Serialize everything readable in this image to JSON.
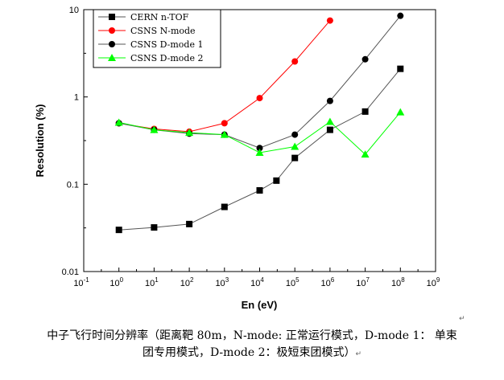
{
  "chart_data": {
    "type": "line",
    "xlabel": "En (eV)",
    "ylabel": "Resolution (%)",
    "x_scale": "log",
    "y_scale": "log",
    "xlim": [
      0.1,
      1000000000
    ],
    "ylim": [
      0.01,
      10
    ],
    "x_ticks": [
      {
        "value": 0.1,
        "base": "10",
        "exp": "-1"
      },
      {
        "value": 1,
        "base": "10",
        "exp": "0"
      },
      {
        "value": 10,
        "base": "10",
        "exp": "1"
      },
      {
        "value": 100,
        "base": "10",
        "exp": "2"
      },
      {
        "value": 1000,
        "base": "10",
        "exp": "3"
      },
      {
        "value": 10000,
        "base": "10",
        "exp": "4"
      },
      {
        "value": 100000,
        "base": "10",
        "exp": "5"
      },
      {
        "value": 1000000,
        "base": "10",
        "exp": "6"
      },
      {
        "value": 10000000,
        "base": "10",
        "exp": "7"
      },
      {
        "value": 100000000,
        "base": "10",
        "exp": "8"
      },
      {
        "value": 1000000000,
        "base": "10",
        "exp": "9"
      }
    ],
    "y_ticks": [
      {
        "value": 0.01,
        "label": "0.01"
      },
      {
        "value": 0.1,
        "label": "0.1"
      },
      {
        "value": 1,
        "label": "1"
      },
      {
        "value": 10,
        "label": "10"
      }
    ],
    "legend_position": "top-left",
    "grid": false,
    "series": [
      {
        "name": "CERN n-TOF",
        "color": "#000000",
        "marker": "square",
        "x": [
          1,
          10,
          100,
          1000,
          10000,
          30000,
          100000,
          1000000,
          10000000,
          100000000
        ],
        "y": [
          0.03,
          0.032,
          0.035,
          0.055,
          0.085,
          0.11,
          0.2,
          0.42,
          0.68,
          2.1
        ]
      },
      {
        "name": "CSNS N-mode",
        "color": "#ff0000",
        "marker": "circle",
        "x": [
          1,
          10,
          100,
          1000,
          10000,
          100000,
          1000000
        ],
        "y": [
          0.5,
          0.43,
          0.4,
          0.5,
          0.97,
          2.55,
          7.5
        ]
      },
      {
        "name": "CSNS D-mode 1",
        "color": "#000000",
        "marker": "circle",
        "x": [
          1,
          10,
          100,
          1000,
          10000,
          100000,
          1000000,
          10000000,
          100000000
        ],
        "y": [
          0.5,
          0.42,
          0.38,
          0.37,
          0.26,
          0.37,
          0.9,
          2.7,
          8.5
        ]
      },
      {
        "name": "CSNS D-mode 2",
        "color": "#00ff00",
        "marker": "triangle",
        "x": [
          1,
          10,
          100,
          1000,
          10000,
          100000,
          1000000,
          10000000,
          100000000
        ],
        "y": [
          0.51,
          0.42,
          0.39,
          0.37,
          0.23,
          0.27,
          0.52,
          0.22,
          0.67
        ]
      }
    ]
  },
  "caption": {
    "line1": "中子飞行时间分辨率（距离靶 80m，N-mode: 正常运行模式，D-mode 1： 单束",
    "line2": "团专用模式，D-mode 2：极短束团模式）"
  },
  "return_mark": "↵"
}
